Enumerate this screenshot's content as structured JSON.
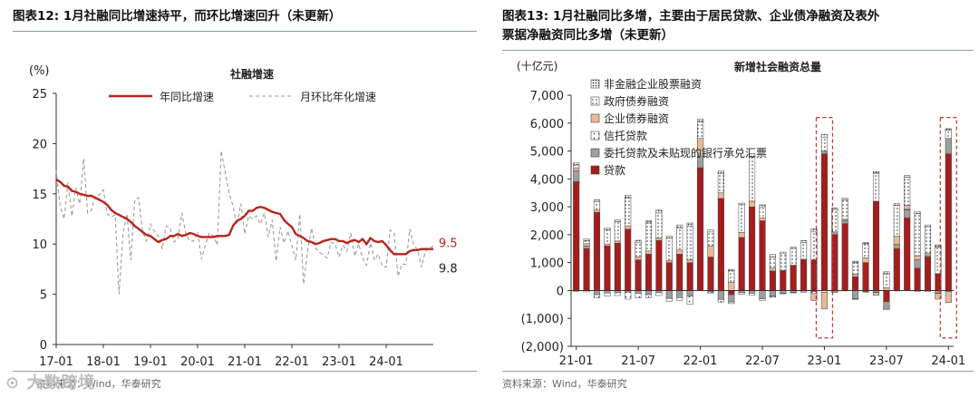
{
  "left": {
    "figure_title": "图表12:  1月社融同比增速持平，而环比增速回升（未更新）",
    "source": "资料来源：Wind，华泰研究",
    "chart_data": {
      "type": "line",
      "title": "社融增速",
      "unit_label": "(%)",
      "xlabel": "",
      "ylabel": "",
      "ylim": [
        0,
        25
      ],
      "yticks": [
        0,
        5,
        10,
        15,
        20,
        25
      ],
      "xticks": [
        "17-01",
        "18-01",
        "19-01",
        "20-01",
        "21-01",
        "22-01",
        "23-01",
        "24-01"
      ],
      "legend_position": "top",
      "grid": false,
      "end_labels": [
        "9.5",
        "9.8"
      ],
      "series": [
        {
          "name": "年同比增速",
          "color": "#b8231c",
          "style": "solid",
          "values": [
            16.4,
            16.2,
            15.8,
            15.7,
            15.3,
            15.2,
            15.0,
            14.9,
            14.8,
            14.8,
            14.6,
            14.4,
            14.2,
            13.9,
            13.4,
            13.1,
            12.9,
            12.7,
            12.5,
            12.2,
            11.8,
            11.5,
            11.2,
            10.9,
            10.8,
            10.5,
            10.2,
            10.4,
            10.5,
            10.8,
            10.8,
            11.0,
            10.8,
            10.9,
            11.1,
            11.0,
            10.8,
            10.7,
            10.7,
            10.7,
            10.7,
            10.8,
            10.8,
            10.8,
            10.9,
            11.8,
            12.3,
            12.5,
            12.8,
            13.3,
            13.3,
            13.6,
            13.7,
            13.6,
            13.4,
            13.2,
            13.1,
            13.0,
            12.4,
            12.0,
            11.7,
            11.0,
            10.8,
            10.6,
            10.3,
            10.2,
            10.0,
            10.1,
            10.3,
            10.4,
            10.5,
            10.5,
            10.3,
            10.3,
            10.1,
            10.3,
            10.4,
            10.2,
            10.5,
            10.0,
            10.6,
            10.3,
            10.2,
            10.3,
            9.9,
            9.4,
            9.0,
            9.0,
            9.0,
            9.0,
            9.3,
            9.4,
            9.4,
            9.5,
            9.5,
            9.5,
            9.5
          ]
        },
        {
          "name": "月环比年化增速",
          "color": "#9a9a9a",
          "style": "dashed",
          "values": [
            17.3,
            13.8,
            12.5,
            16.1,
            12.8,
            15.6,
            14.0,
            18.5,
            13.1,
            13.4,
            14.8,
            14.9,
            15.4,
            13.0,
            12.7,
            12.9,
            5.0,
            11.0,
            13.0,
            8.4,
            14.4,
            14.6,
            11.2,
            10.3,
            12.0,
            11.3,
            10.8,
            9.5,
            11.8,
            11.6,
            10.2,
            10.5,
            13.1,
            11.0,
            10.3,
            10.3,
            11.2,
            8.5,
            10.0,
            11.1,
            10.8,
            9.9,
            19.3,
            17.2,
            15.1,
            13.8,
            11.9,
            14.0,
            11.0,
            12.8,
            12.5,
            12.8,
            12.0,
            13.1,
            10.7,
            12.4,
            8.3,
            11.7,
            10.1,
            11.3,
            9.8,
            8.4,
            13.0,
            6.0,
            9.3,
            11.6,
            9.6,
            9.2,
            8.9,
            8.6,
            10.2,
            10.0,
            8.7,
            9.9,
            9.3,
            11.1,
            8.8,
            10.0,
            8.6,
            7.9,
            10.1,
            8.4,
            9.0,
            7.8,
            7.7,
            11.4,
            11.1,
            6.8,
            8.0,
            8.0,
            11.5,
            10.0,
            9.4,
            7.7,
            9.3,
            9.6,
            9.8
          ]
        }
      ]
    }
  },
  "right": {
    "figure_title_line1": "图表13:  1月社融同比多增，主要由于居民贷款、企业债净融资及表外",
    "figure_title_line2": "票据净融资同比多增（未更新）",
    "source": "资料来源：Wind，华泰研究",
    "chart_data": {
      "type": "bar",
      "stacked": true,
      "title": "新增社会融资总量",
      "unit_label": "(十亿元)",
      "xlabel": "",
      "ylabel": "",
      "ylim": [
        -2000,
        7000
      ],
      "yticks": [
        "(2,000)",
        "(1,000)",
        "0",
        "1,000",
        "2,000",
        "3,000",
        "4,000",
        "5,000",
        "6,000",
        "7,000"
      ],
      "ytick_values": [
        -2000,
        -1000,
        0,
        1000,
        2000,
        3000,
        4000,
        5000,
        6000,
        7000
      ],
      "xticks": [
        "21-01",
        "21-07",
        "22-01",
        "22-07",
        "23-01",
        "23-07",
        "24-01"
      ],
      "legend_position": "top-left",
      "grid": false,
      "highlighted_months": [
        "23-01",
        "24-01"
      ],
      "categories": [
        "21-01",
        "21-02",
        "21-03",
        "21-04",
        "21-05",
        "21-06",
        "21-07",
        "21-08",
        "21-09",
        "21-10",
        "21-11",
        "21-12",
        "22-01",
        "22-02",
        "22-03",
        "22-04",
        "22-05",
        "22-06",
        "22-07",
        "22-08",
        "22-09",
        "22-10",
        "22-11",
        "22-12",
        "23-01",
        "23-02",
        "23-03",
        "23-04",
        "23-05",
        "23-06",
        "23-07",
        "23-08",
        "23-09",
        "23-10",
        "23-11",
        "23-12",
        "24-01"
      ],
      "series": [
        {
          "name": "非金融企业股票融资",
          "pattern": "dots-dense",
          "color": "#333333",
          "values": [
            80,
            60,
            70,
            80,
            60,
            100,
            90,
            80,
            100,
            70,
            100,
            120,
            100,
            70,
            80,
            60,
            50,
            100,
            70,
            90,
            60,
            50,
            70,
            120,
            90,
            60,
            60,
            60,
            50,
            60,
            70,
            70,
            60,
            80,
            60,
            90,
            60
          ]
        },
        {
          "name": "政府债券融资",
          "pattern": "dots",
          "color": "#555555",
          "values": [
            100,
            110,
            300,
            500,
            700,
            1000,
            500,
            1000,
            900,
            800,
            800,
            1200,
            600,
            500,
            700,
            400,
            1000,
            1600,
            400,
            400,
            600,
            600,
            600,
            1000,
            500,
            800,
            700,
            400,
            500,
            1000,
            500,
            1100,
            1000,
            1500,
            950,
            950,
            290
          ]
        },
        {
          "name": "企业债券融资",
          "pattern": "solid",
          "color": "#e8b89b",
          "values": [
            100,
            80,
            80,
            70,
            70,
            120,
            110,
            120,
            80,
            80,
            150,
            100,
            600,
            400,
            200,
            300,
            180,
            200,
            100,
            100,
            20,
            10,
            20,
            -250,
            -600,
            -50,
            50,
            90,
            170,
            -100,
            100,
            300,
            150,
            150,
            90,
            -200,
            -400
          ]
        },
        {
          "name": "信托贷款",
          "pattern": "dots-sparse",
          "color": "#777777",
          "values": [
            -30,
            -50,
            -100,
            -100,
            -100,
            -250,
            -150,
            -100,
            -100,
            -100,
            -100,
            -300,
            50,
            -40,
            -90,
            -60,
            -50,
            -70,
            -60,
            -40,
            -20,
            -10,
            -40,
            -70,
            -60,
            -20,
            -10,
            -10,
            -20,
            -10,
            -40,
            -10,
            10,
            -40,
            -40,
            -10,
            -30
          ]
        },
        {
          "name": "委托贷款及未贴现的银行承兑汇票",
          "pattern": "solid",
          "color": "#9e9e9e",
          "values": [
            400,
            100,
            -150,
            -90,
            -80,
            -60,
            -110,
            -150,
            -80,
            -280,
            -260,
            -200,
            400,
            -50,
            -320,
            -260,
            -80,
            -100,
            -300,
            -200,
            -100,
            -70,
            -20,
            -40,
            100,
            100,
            100,
            -300,
            -40,
            -60,
            -250,
            150,
            300,
            300,
            50,
            -100,
            550
          ]
        },
        {
          "name": "贷款",
          "pattern": "solid",
          "color": "#a61d1d",
          "values": [
            3900,
            1500,
            2800,
            1600,
            1700,
            2200,
            1100,
            1300,
            1800,
            1000,
            1300,
            1000,
            4400,
            1200,
            3300,
            -150,
            1900,
            3000,
            2500,
            700,
            700,
            900,
            1100,
            1100,
            4900,
            2000,
            2400,
            500,
            1000,
            3200,
            -400,
            1500,
            2600,
            800,
            1200,
            600,
            4900
          ]
        }
      ]
    }
  },
  "watermark": "大数跨境"
}
